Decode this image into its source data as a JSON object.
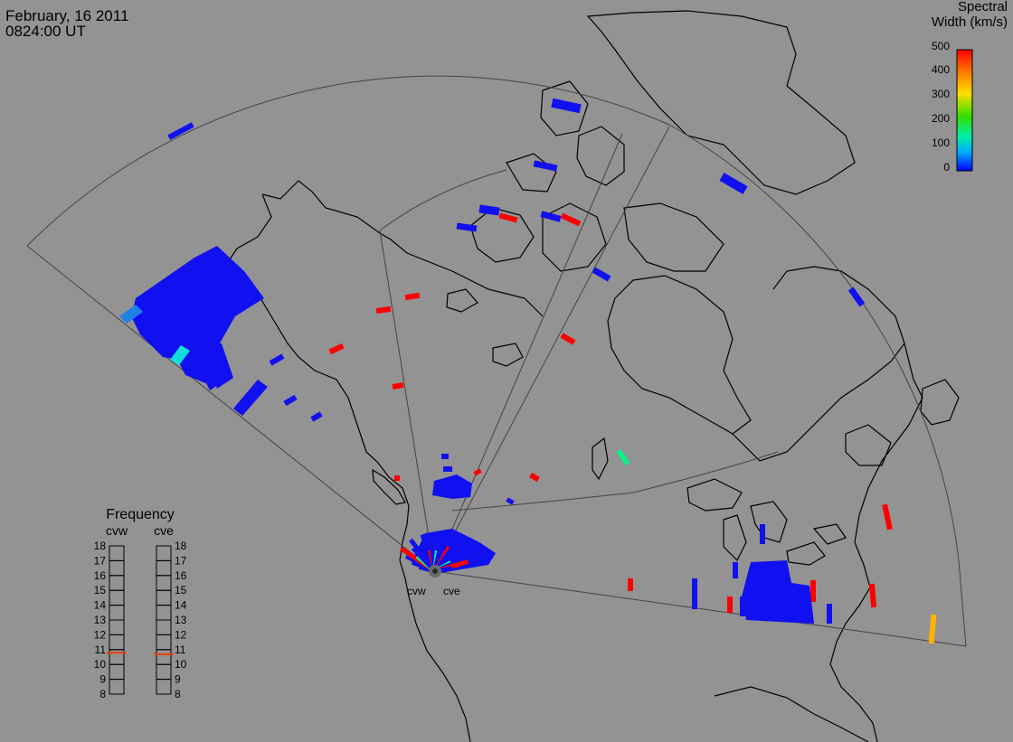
{
  "header": {
    "date": "February, 16 2011",
    "time": "0824:00 UT"
  },
  "colorbar": {
    "title_line1": "Spectral",
    "title_line2": "Width (km/s)",
    "ticks": [
      "500",
      "400",
      "300",
      "200",
      "100",
      "0"
    ],
    "gradient": [
      "#ff0000",
      "#ff6600",
      "#ffcc00",
      "#ccff00",
      "#33dd00",
      "#00ffaa",
      "#00aaff",
      "#0000ff"
    ]
  },
  "frequency": {
    "title": "Frequency",
    "radar_left": "cvw",
    "radar_right": "cve",
    "channels": [
      "18",
      "17",
      "16",
      "15",
      "14",
      "13",
      "12",
      "11",
      "10",
      "9",
      "8"
    ],
    "cvw_mhz": 10.8,
    "cve_mhz": 10.7,
    "marker_color": "#e8400a"
  },
  "radars": {
    "west": "cvw",
    "east": "cve"
  },
  "colors": {
    "background": "#939393",
    "coast": "#000000",
    "fov": "#444444",
    "low": "#1010f0",
    "high": "#ff0000",
    "mid": "#ffb400",
    "cyan": "#11dddd",
    "green": "#11ee88"
  }
}
